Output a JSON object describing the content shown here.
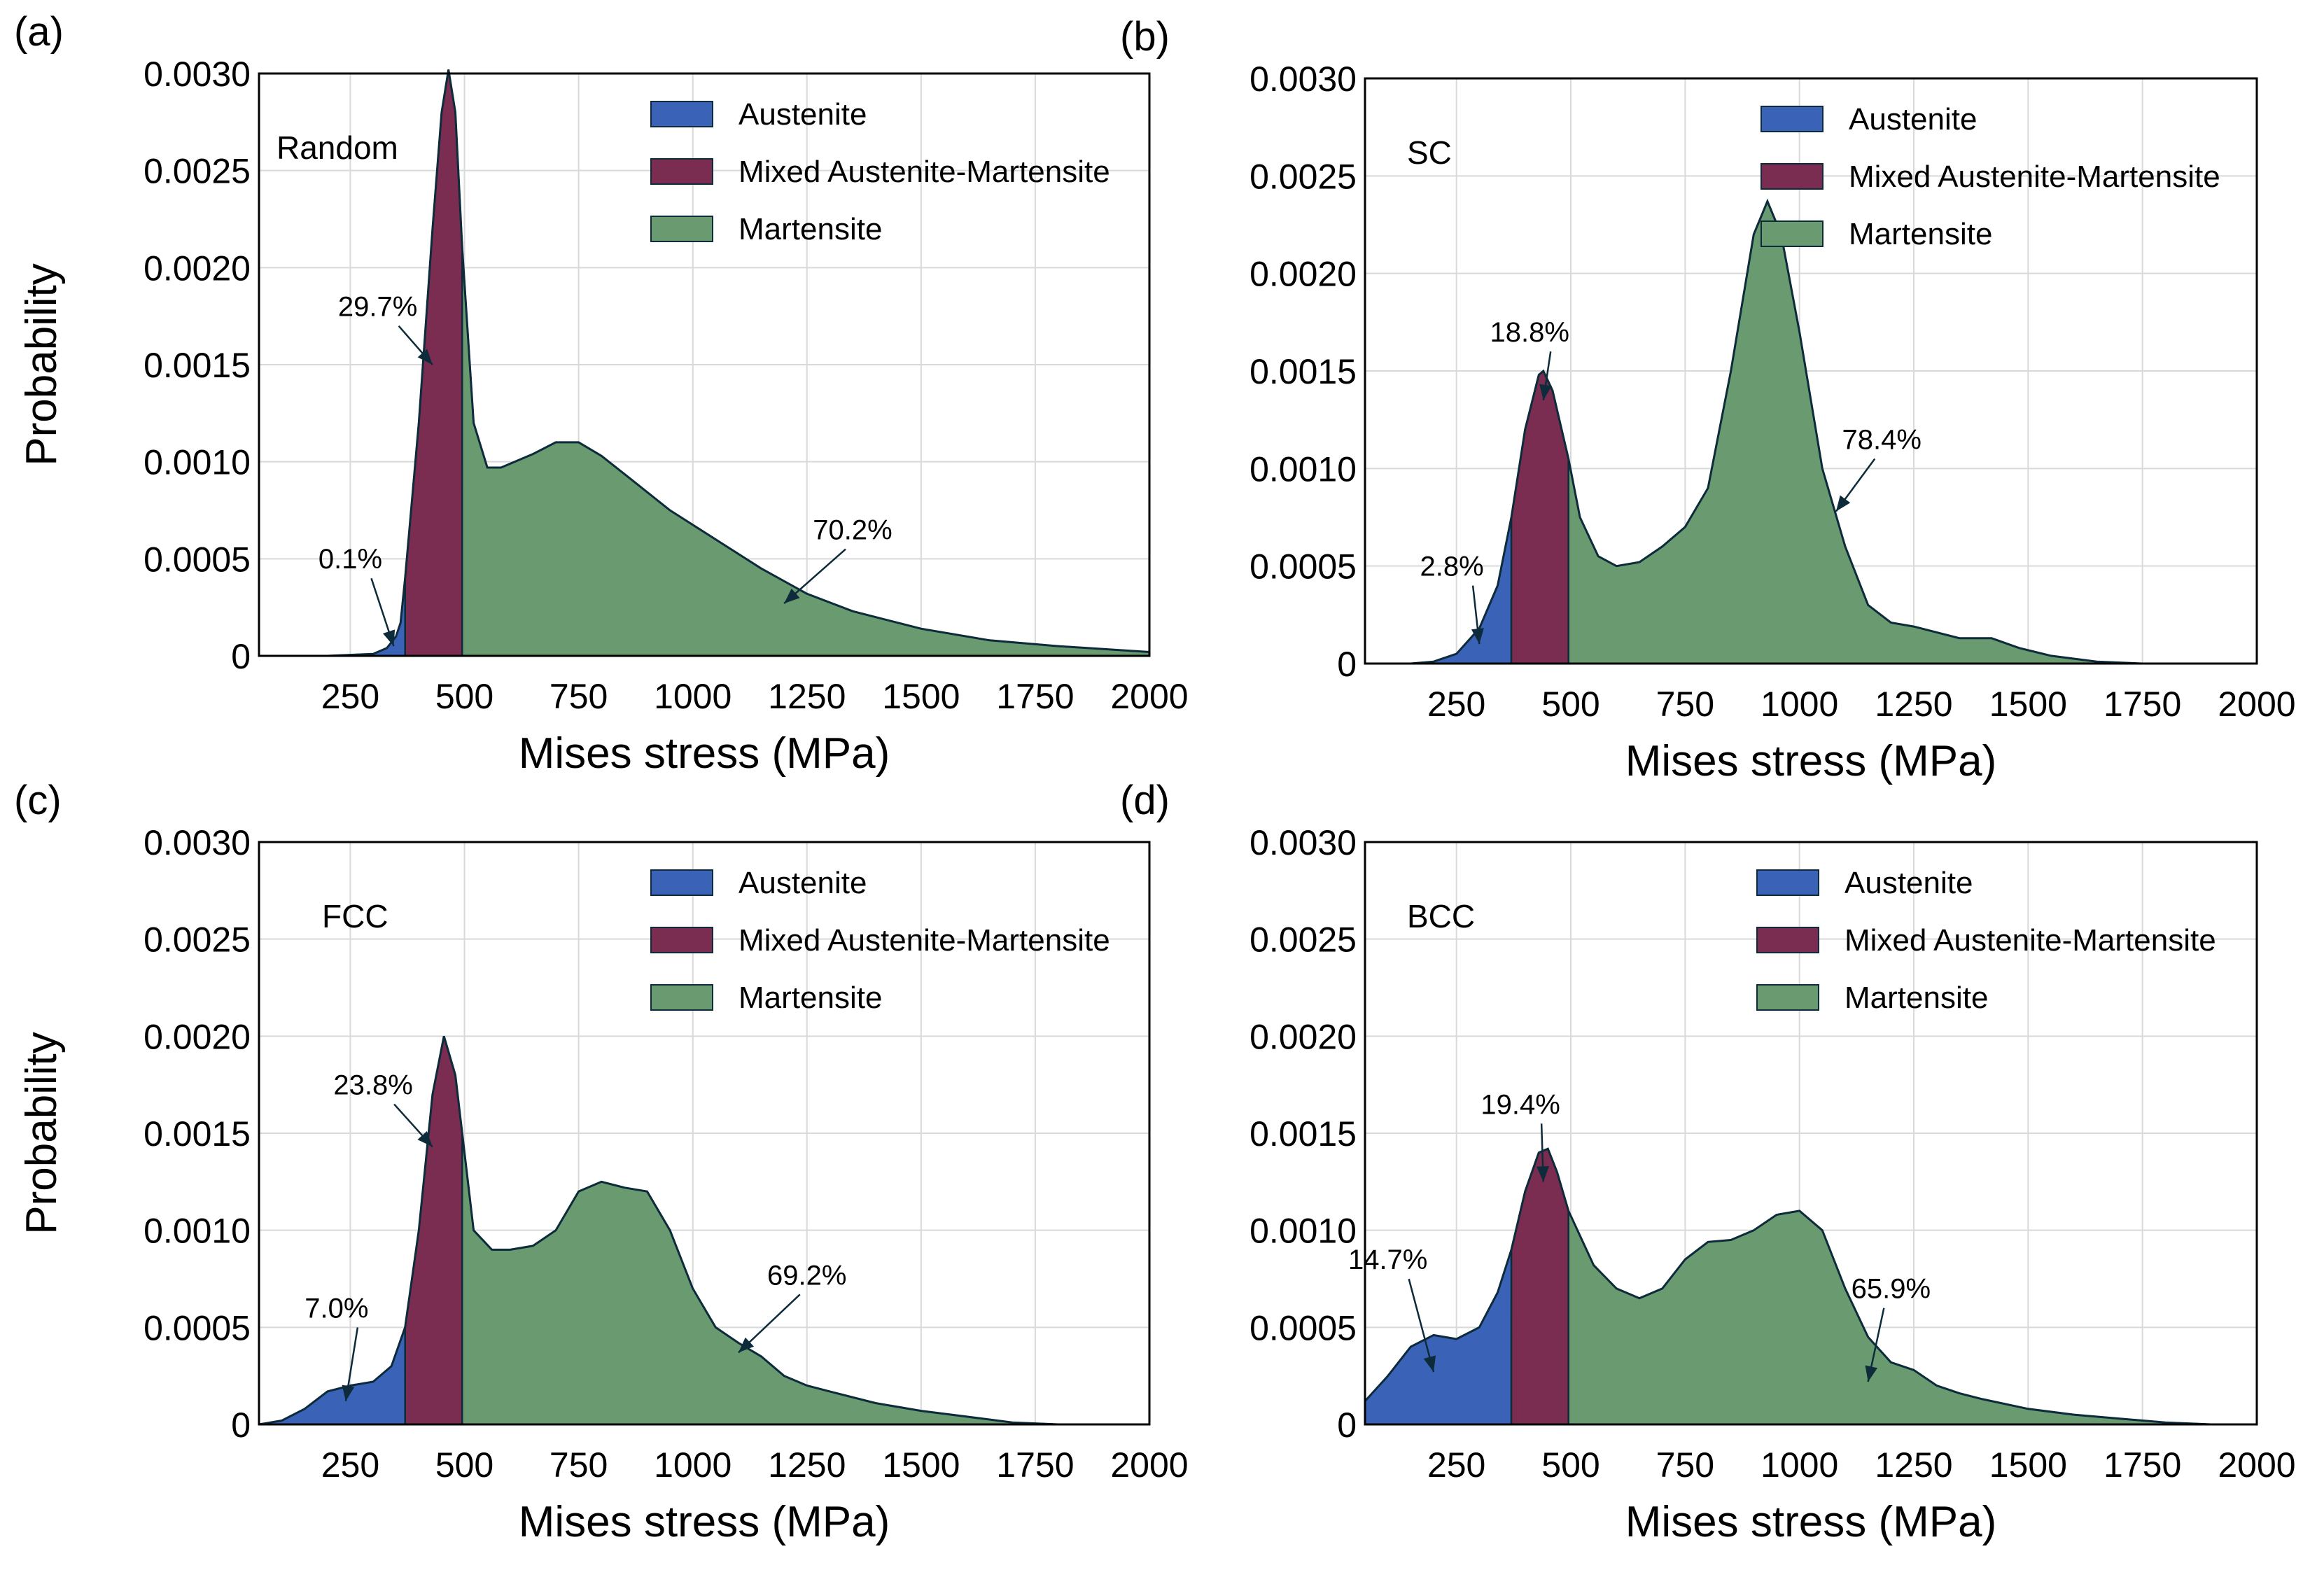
{
  "colors": {
    "austenite": "#3a63b8",
    "mixed": "#7a2d50",
    "martensite": "#6a9b70",
    "outline": "#0d2b3a",
    "grid": "#d9d9d9"
  },
  "chart_data": [
    {
      "type": "area",
      "panel_label": "(a)",
      "title": "Random",
      "xlabel": "Mises stress (MPa)",
      "ylabel": "Probability",
      "xlim": [
        50,
        2000
      ],
      "ylim": [
        0,
        0.003
      ],
      "xticks": [
        250,
        500,
        750,
        1000,
        1250,
        1500,
        1750,
        2000
      ],
      "yticks": [
        0,
        0.0005,
        0.001,
        0.0015,
        0.002,
        0.0025,
        0.003
      ],
      "ytick_labels": [
        "0",
        "0.0005",
        "0.0010",
        "0.0015",
        "0.0020",
        "0.0025",
        "0.0030"
      ],
      "grid": true,
      "legend_position": "top-right",
      "legend": [
        "Austenite",
        "Mixed Austenite-Martensite",
        "Martensite"
      ],
      "boundaries": [
        370,
        495
      ],
      "curve": [
        [
          50,
          0
        ],
        [
          200,
          0
        ],
        [
          300,
          1e-05
        ],
        [
          330,
          4e-05
        ],
        [
          350,
          0.0001
        ],
        [
          360,
          0.00017
        ],
        [
          370,
          0.0004
        ],
        [
          400,
          0.0012
        ],
        [
          430,
          0.0022
        ],
        [
          450,
          0.0028
        ],
        [
          465,
          0.00302
        ],
        [
          480,
          0.0028
        ],
        [
          495,
          0.0021
        ],
        [
          520,
          0.0012
        ],
        [
          550,
          0.00097
        ],
        [
          580,
          0.00097
        ],
        [
          650,
          0.00104
        ],
        [
          700,
          0.0011
        ],
        [
          750,
          0.0011
        ],
        [
          800,
          0.00103
        ],
        [
          870,
          0.0009
        ],
        [
          950,
          0.00075
        ],
        [
          1050,
          0.0006
        ],
        [
          1150,
          0.00045
        ],
        [
          1250,
          0.00032
        ],
        [
          1350,
          0.00023
        ],
        [
          1500,
          0.00014
        ],
        [
          1650,
          8e-05
        ],
        [
          1800,
          5e-05
        ],
        [
          2000,
          2e-05
        ]
      ],
      "annotations": [
        {
          "text": "0.1%",
          "x": 250,
          "y": 0.00045,
          "ax": 345,
          "ay": 5e-05
        },
        {
          "text": "29.7%",
          "x": 310,
          "y": 0.00175,
          "ax": 430,
          "ay": 0.0015
        },
        {
          "text": "70.2%",
          "x": 1350,
          "y": 0.0006,
          "ax": 1200,
          "ay": 0.00027
        }
      ]
    },
    {
      "type": "area",
      "panel_label": "(b)",
      "title": "SC",
      "xlabel": "Mises stress (MPa)",
      "ylabel": "",
      "xlim": [
        50,
        2000
      ],
      "ylim": [
        0,
        0.003
      ],
      "xticks": [
        250,
        500,
        750,
        1000,
        1250,
        1500,
        1750,
        2000
      ],
      "yticks": [
        0,
        0.0005,
        0.001,
        0.0015,
        0.002,
        0.0025,
        0.003
      ],
      "ytick_labels": [
        "0",
        "0.0005",
        "0.0010",
        "0.0015",
        "0.0020",
        "0.0025",
        "0.0030"
      ],
      "grid": true,
      "legend_position": "top-right",
      "legend": [
        "Austenite",
        "Mixed Austenite-Martensite",
        "Martensite"
      ],
      "boundaries": [
        370,
        495
      ],
      "curve": [
        [
          50,
          0
        ],
        [
          150,
          0
        ],
        [
          200,
          1e-05
        ],
        [
          250,
          5e-05
        ],
        [
          300,
          0.00018
        ],
        [
          340,
          0.0004
        ],
        [
          370,
          0.00075
        ],
        [
          400,
          0.0012
        ],
        [
          430,
          0.00148
        ],
        [
          440,
          0.0015
        ],
        [
          460,
          0.0014
        ],
        [
          495,
          0.00105
        ],
        [
          520,
          0.00075
        ],
        [
          560,
          0.00055
        ],
        [
          600,
          0.0005
        ],
        [
          650,
          0.00052
        ],
        [
          700,
          0.0006
        ],
        [
          750,
          0.0007
        ],
        [
          800,
          0.0009
        ],
        [
          850,
          0.0015
        ],
        [
          900,
          0.0022
        ],
        [
          930,
          0.00237
        ],
        [
          960,
          0.0022
        ],
        [
          1000,
          0.0017
        ],
        [
          1050,
          0.001
        ],
        [
          1100,
          0.0006
        ],
        [
          1150,
          0.0003
        ],
        [
          1200,
          0.00021
        ],
        [
          1250,
          0.00019
        ],
        [
          1300,
          0.00016
        ],
        [
          1350,
          0.00013
        ],
        [
          1420,
          0.00013
        ],
        [
          1480,
          8e-05
        ],
        [
          1550,
          4e-05
        ],
        [
          1650,
          1e-05
        ],
        [
          1750,
          0
        ],
        [
          2000,
          0
        ]
      ],
      "annotations": [
        {
          "text": "2.8%",
          "x": 240,
          "y": 0.00045,
          "ax": 300,
          "ay": 0.0001
        },
        {
          "text": "18.8%",
          "x": 410,
          "y": 0.00165,
          "ax": 440,
          "ay": 0.00135
        },
        {
          "text": "78.4%",
          "x": 1180,
          "y": 0.0011,
          "ax": 1080,
          "ay": 0.00078
        }
      ]
    },
    {
      "type": "area",
      "panel_label": "(c)",
      "title": "FCC",
      "xlabel": "Mises stress (MPa)",
      "ylabel": "Probability",
      "xlim": [
        50,
        2000
      ],
      "ylim": [
        0,
        0.003
      ],
      "xticks": [
        250,
        500,
        750,
        1000,
        1250,
        1500,
        1750,
        2000
      ],
      "yticks": [
        0,
        0.0005,
        0.001,
        0.0015,
        0.002,
        0.0025,
        0.003
      ],
      "ytick_labels": [
        "0",
        "0.0005",
        "0.0010",
        "0.0015",
        "0.0020",
        "0.0025",
        "0.0030"
      ],
      "grid": true,
      "legend_position": "top-right",
      "legend": [
        "Austenite",
        "Mixed Austenite-Martensite",
        "Martensite"
      ],
      "boundaries": [
        370,
        495
      ],
      "curve": [
        [
          50,
          0
        ],
        [
          100,
          2e-05
        ],
        [
          150,
          8e-05
        ],
        [
          200,
          0.00017
        ],
        [
          250,
          0.0002
        ],
        [
          300,
          0.00022
        ],
        [
          340,
          0.0003
        ],
        [
          370,
          0.0005
        ],
        [
          400,
          0.001
        ],
        [
          430,
          0.0017
        ],
        [
          455,
          0.002
        ],
        [
          480,
          0.0018
        ],
        [
          495,
          0.0015
        ],
        [
          520,
          0.001
        ],
        [
          560,
          0.0009
        ],
        [
          600,
          0.0009
        ],
        [
          650,
          0.00092
        ],
        [
          700,
          0.001
        ],
        [
          750,
          0.0012
        ],
        [
          800,
          0.00125
        ],
        [
          850,
          0.00122
        ],
        [
          900,
          0.0012
        ],
        [
          950,
          0.001
        ],
        [
          1000,
          0.0007
        ],
        [
          1050,
          0.0005
        ],
        [
          1100,
          0.00042
        ],
        [
          1150,
          0.00035
        ],
        [
          1200,
          0.00025
        ],
        [
          1250,
          0.0002
        ],
        [
          1300,
          0.00017
        ],
        [
          1400,
          0.00011
        ],
        [
          1500,
          7e-05
        ],
        [
          1600,
          4e-05
        ],
        [
          1700,
          1e-05
        ],
        [
          1800,
          0
        ],
        [
          2000,
          0
        ]
      ],
      "annotations": [
        {
          "text": "7.0%",
          "x": 220,
          "y": 0.00055,
          "ax": 240,
          "ay": 0.00012
        },
        {
          "text": "23.8%",
          "x": 300,
          "y": 0.0017,
          "ax": 430,
          "ay": 0.00143
        },
        {
          "text": "69.2%",
          "x": 1250,
          "y": 0.00072,
          "ax": 1100,
          "ay": 0.00037
        }
      ]
    },
    {
      "type": "area",
      "panel_label": "(d)",
      "title": "BCC",
      "xlabel": "Mises stress (MPa)",
      "ylabel": "",
      "xlim": [
        50,
        2000
      ],
      "ylim": [
        0,
        0.003
      ],
      "xticks": [
        250,
        500,
        750,
        1000,
        1250,
        1500,
        1750,
        2000
      ],
      "yticks": [
        0,
        0.0005,
        0.001,
        0.0015,
        0.002,
        0.0025,
        0.003
      ],
      "ytick_labels": [
        "0",
        "0.0005",
        "0.0010",
        "0.0015",
        "0.0020",
        "0.0025",
        "0.0030"
      ],
      "grid": true,
      "legend_position": "top-right",
      "legend": [
        "Austenite",
        "Mixed Austenite-Martensite",
        "Martensite"
      ],
      "boundaries": [
        370,
        495
      ],
      "curve": [
        [
          50,
          0.00012
        ],
        [
          100,
          0.00025
        ],
        [
          150,
          0.0004
        ],
        [
          200,
          0.00046
        ],
        [
          250,
          0.00044
        ],
        [
          300,
          0.0005
        ],
        [
          340,
          0.00068
        ],
        [
          370,
          0.0009
        ],
        [
          400,
          0.0012
        ],
        [
          430,
          0.0014
        ],
        [
          450,
          0.00142
        ],
        [
          470,
          0.0013
        ],
        [
          495,
          0.0011
        ],
        [
          550,
          0.00082
        ],
        [
          600,
          0.0007
        ],
        [
          650,
          0.00065
        ],
        [
          700,
          0.0007
        ],
        [
          750,
          0.00085
        ],
        [
          800,
          0.00094
        ],
        [
          850,
          0.00095
        ],
        [
          900,
          0.001
        ],
        [
          950,
          0.00108
        ],
        [
          1000,
          0.0011
        ],
        [
          1050,
          0.001
        ],
        [
          1100,
          0.0007
        ],
        [
          1150,
          0.00045
        ],
        [
          1200,
          0.00032
        ],
        [
          1250,
          0.00028
        ],
        [
          1300,
          0.0002
        ],
        [
          1350,
          0.00016
        ],
        [
          1400,
          0.00013
        ],
        [
          1500,
          8e-05
        ],
        [
          1600,
          5e-05
        ],
        [
          1700,
          3e-05
        ],
        [
          1800,
          1e-05
        ],
        [
          1900,
          0
        ],
        [
          2000,
          0
        ]
      ],
      "annotations": [
        {
          "text": "14.7%",
          "x": 100,
          "y": 0.0008,
          "ax": 200,
          "ay": 0.00027
        },
        {
          "text": "19.4%",
          "x": 390,
          "y": 0.0016,
          "ax": 440,
          "ay": 0.00125
        },
        {
          "text": "65.9%",
          "x": 1200,
          "y": 0.00065,
          "ax": 1150,
          "ay": 0.00022
        }
      ]
    }
  ]
}
